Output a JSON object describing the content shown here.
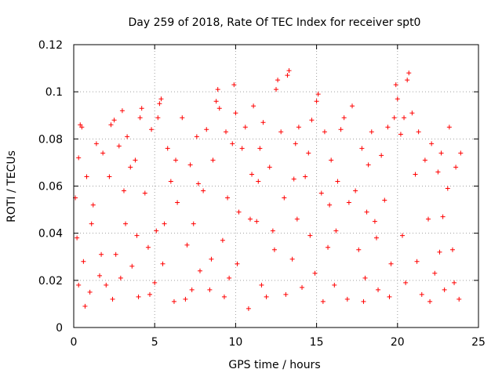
{
  "chart_data": {
    "type": "scatter",
    "title": "Day 259 of 2018, Rate Of TEC Index for receiver spt0",
    "xlabel": "GPS time / hours",
    "ylabel": "ROTI / TECUs",
    "xlim": [
      0,
      25
    ],
    "ylim": [
      0,
      0.12
    ],
    "x_ticks": [
      0,
      5,
      10,
      15,
      20,
      25
    ],
    "y_ticks": [
      0,
      0.02,
      0.04,
      0.06,
      0.08,
      0.1,
      0.12
    ],
    "x_tick_labels": [
      "0",
      "5",
      "10",
      "15",
      "20",
      "25"
    ],
    "y_tick_labels": [
      "0",
      "0.02",
      "0.04",
      "0.06",
      "0.08",
      "0.1",
      "0.12"
    ],
    "grid": true,
    "marker": "+",
    "color": "#ff0000",
    "series": [
      {
        "name": "ROTI",
        "points": [
          [
            0.1,
            0.055
          ],
          [
            0.2,
            0.038
          ],
          [
            0.3,
            0.072
          ],
          [
            0.4,
            0.086
          ],
          [
            0.5,
            0.085
          ],
          [
            0.6,
            0.028
          ],
          [
            0.8,
            0.064
          ],
          [
            1.0,
            0.015
          ],
          [
            1.2,
            0.052
          ],
          [
            1.4,
            0.078
          ],
          [
            1.6,
            0.022
          ],
          [
            1.8,
            0.074
          ],
          [
            2.0,
            0.018
          ],
          [
            2.2,
            0.064
          ],
          [
            2.3,
            0.086
          ],
          [
            2.5,
            0.088
          ],
          [
            2.6,
            0.031
          ],
          [
            2.8,
            0.077
          ],
          [
            3.0,
            0.092
          ],
          [
            3.2,
            0.044
          ],
          [
            3.3,
            0.081
          ],
          [
            3.5,
            0.068
          ],
          [
            3.6,
            0.026
          ],
          [
            3.8,
            0.071
          ],
          [
            4.0,
            0.013
          ],
          [
            4.1,
            0.089
          ],
          [
            4.2,
            0.093
          ],
          [
            4.4,
            0.057
          ],
          [
            4.6,
            0.034
          ],
          [
            4.8,
            0.084
          ],
          [
            5.0,
            0.019
          ],
          [
            5.2,
            0.089
          ],
          [
            5.3,
            0.095
          ],
          [
            5.4,
            0.097
          ],
          [
            5.6,
            0.044
          ],
          [
            5.8,
            0.076
          ],
          [
            6.0,
            0.062
          ],
          [
            6.2,
            0.011
          ],
          [
            6.4,
            0.053
          ],
          [
            6.7,
            0.089
          ],
          [
            6.9,
            0.012
          ],
          [
            7.2,
            0.069
          ],
          [
            7.4,
            0.044
          ],
          [
            7.6,
            0.081
          ],
          [
            7.8,
            0.024
          ],
          [
            8.0,
            0.058
          ],
          [
            8.2,
            0.084
          ],
          [
            8.4,
            0.016
          ],
          [
            8.6,
            0.071
          ],
          [
            8.8,
            0.096
          ],
          [
            8.9,
            0.101
          ],
          [
            9.0,
            0.093
          ],
          [
            9.2,
            0.037
          ],
          [
            9.4,
            0.083
          ],
          [
            9.6,
            0.021
          ],
          [
            9.8,
            0.078
          ],
          [
            9.9,
            0.103
          ],
          [
            10.0,
            0.091
          ],
          [
            10.2,
            0.049
          ],
          [
            10.4,
            0.076
          ],
          [
            10.6,
            0.085
          ],
          [
            10.8,
            0.008
          ],
          [
            11.0,
            0.065
          ],
          [
            11.1,
            0.094
          ],
          [
            11.3,
            0.045
          ],
          [
            11.5,
            0.076
          ],
          [
            11.7,
            0.087
          ],
          [
            11.9,
            0.013
          ],
          [
            12.1,
            0.068
          ],
          [
            12.3,
            0.041
          ],
          [
            12.5,
            0.101
          ],
          [
            12.6,
            0.105
          ],
          [
            12.8,
            0.083
          ],
          [
            13.0,
            0.055
          ],
          [
            13.2,
            0.107
          ],
          [
            13.3,
            0.109
          ],
          [
            13.5,
            0.029
          ],
          [
            13.7,
            0.078
          ],
          [
            13.9,
            0.085
          ],
          [
            14.1,
            0.017
          ],
          [
            14.3,
            0.064
          ],
          [
            14.5,
            0.074
          ],
          [
            14.7,
            0.088
          ],
          [
            14.9,
            0.023
          ],
          [
            15.0,
            0.096
          ],
          [
            15.1,
            0.099
          ],
          [
            15.3,
            0.057
          ],
          [
            15.5,
            0.083
          ],
          [
            15.7,
            0.034
          ],
          [
            15.9,
            0.071
          ],
          [
            16.1,
            0.018
          ],
          [
            16.3,
            0.062
          ],
          [
            16.5,
            0.084
          ],
          [
            16.7,
            0.089
          ],
          [
            16.9,
            0.012
          ],
          [
            17.2,
            0.094
          ],
          [
            17.4,
            0.058
          ],
          [
            17.6,
            0.033
          ],
          [
            17.8,
            0.076
          ],
          [
            18.0,
            0.021
          ],
          [
            18.2,
            0.069
          ],
          [
            18.4,
            0.083
          ],
          [
            18.6,
            0.045
          ],
          [
            18.8,
            0.016
          ],
          [
            19.0,
            0.073
          ],
          [
            19.2,
            0.054
          ],
          [
            19.4,
            0.085
          ],
          [
            19.6,
            0.027
          ],
          [
            19.8,
            0.089
          ],
          [
            19.9,
            0.103
          ],
          [
            20.0,
            0.097
          ],
          [
            20.2,
            0.082
          ],
          [
            20.4,
            0.089
          ],
          [
            20.6,
            0.105
          ],
          [
            20.7,
            0.108
          ],
          [
            20.9,
            0.091
          ],
          [
            21.1,
            0.065
          ],
          [
            21.3,
            0.083
          ],
          [
            21.5,
            0.014
          ],
          [
            21.7,
            0.071
          ],
          [
            21.9,
            0.046
          ],
          [
            22.1,
            0.078
          ],
          [
            22.3,
            0.023
          ],
          [
            22.5,
            0.066
          ],
          [
            22.7,
            0.074
          ],
          [
            22.9,
            0.016
          ],
          [
            23.1,
            0.059
          ],
          [
            23.2,
            0.085
          ],
          [
            23.4,
            0.033
          ],
          [
            23.6,
            0.068
          ],
          [
            23.8,
            0.012
          ],
          [
            23.9,
            0.074
          ],
          [
            0.3,
            0.018
          ],
          [
            1.1,
            0.044
          ],
          [
            1.7,
            0.031
          ],
          [
            2.4,
            0.012
          ],
          [
            3.1,
            0.058
          ],
          [
            3.9,
            0.039
          ],
          [
            4.7,
            0.014
          ],
          [
            5.5,
            0.027
          ],
          [
            6.3,
            0.071
          ],
          [
            7.0,
            0.035
          ],
          [
            7.7,
            0.061
          ],
          [
            8.5,
            0.029
          ],
          [
            9.3,
            0.013
          ],
          [
            10.1,
            0.027
          ],
          [
            10.9,
            0.046
          ],
          [
            11.6,
            0.018
          ],
          [
            12.4,
            0.033
          ],
          [
            13.1,
            0.014
          ],
          [
            13.8,
            0.046
          ],
          [
            14.6,
            0.039
          ],
          [
            15.4,
            0.011
          ],
          [
            16.2,
            0.041
          ],
          [
            17.0,
            0.053
          ],
          [
            17.9,
            0.011
          ],
          [
            18.7,
            0.038
          ],
          [
            19.5,
            0.013
          ],
          [
            20.3,
            0.039
          ],
          [
            21.2,
            0.028
          ],
          [
            22.0,
            0.011
          ],
          [
            22.8,
            0.047
          ],
          [
            23.5,
            0.019
          ],
          [
            0.7,
            0.009
          ],
          [
            2.9,
            0.021
          ],
          [
            5.1,
            0.041
          ],
          [
            7.3,
            0.016
          ],
          [
            9.5,
            0.055
          ],
          [
            11.4,
            0.062
          ],
          [
            13.6,
            0.063
          ],
          [
            15.8,
            0.052
          ],
          [
            18.1,
            0.049
          ],
          [
            20.5,
            0.019
          ],
          [
            22.6,
            0.032
          ]
        ]
      }
    ]
  }
}
